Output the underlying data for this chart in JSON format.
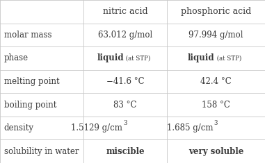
{
  "col_headers": [
    "",
    "nitric acid",
    "phosphoric acid"
  ],
  "rows": [
    {
      "label": "molar mass",
      "col1": "63.012 g/mol",
      "col2": "97.994 g/mol",
      "col1_style": "normal",
      "col2_style": "normal"
    },
    {
      "label": "phase",
      "col1": "phase_special",
      "col2": "phase_special",
      "col1_style": "phase",
      "col2_style": "phase"
    },
    {
      "label": "melting point",
      "col1": "−41.6 °C",
      "col2": "42.4 °C",
      "col1_style": "normal",
      "col2_style": "normal"
    },
    {
      "label": "boiling point",
      "col1": "83 °C",
      "col2": "158 °C",
      "col1_style": "normal",
      "col2_style": "normal"
    },
    {
      "label": "density",
      "col1": "density_special_1",
      "col2": "density_special_2",
      "col1_style": "density",
      "col2_style": "density"
    },
    {
      "label": "solubility in water",
      "col1": "miscible",
      "col2": "very soluble",
      "col1_style": "bold",
      "col2_style": "bold"
    }
  ],
  "density_col1_main": "1.5129 g/cm",
  "density_col2_main": "1.685 g/cm",
  "density_sup": "3",
  "bg_color": "#ffffff",
  "text_color": "#3a3a3a",
  "header_color": "#3a3a3a",
  "line_color": "#c8c8c8",
  "font_size": 8.5,
  "header_font_size": 9.0,
  "small_font_size": 6.2,
  "col_boundaries": [
    0.0,
    0.315,
    0.63,
    1.0
  ],
  "n_rows": 6,
  "row_height_equal": true
}
